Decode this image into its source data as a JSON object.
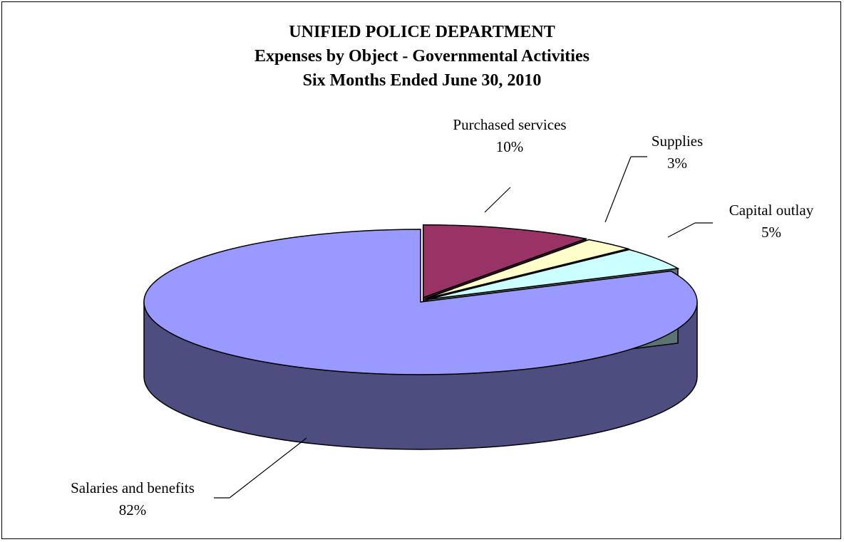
{
  "chart_data": {
    "type": "pie",
    "title": "UNIFIED POLICE DEPARTMENT",
    "subtitle_lines": [
      "Expenses by Object - Governmental Activities",
      "Six Months Ended June 30, 2010"
    ],
    "three_d": true,
    "slices": [
      {
        "label": "Purchased services",
        "value": 10,
        "value_label": "10%",
        "color": "#993366",
        "exploded": true
      },
      {
        "label": "Supplies",
        "value": 3,
        "value_label": "3%",
        "color": "#FFFFCC",
        "exploded": true
      },
      {
        "label": "Capital outlay",
        "value": 5,
        "value_label": "5%",
        "color": "#CCFFFF",
        "exploded": true
      },
      {
        "label": "Salaries and benefits",
        "value": 82,
        "value_label": "82%",
        "color": "#9999FF",
        "exploded": false
      }
    ]
  }
}
